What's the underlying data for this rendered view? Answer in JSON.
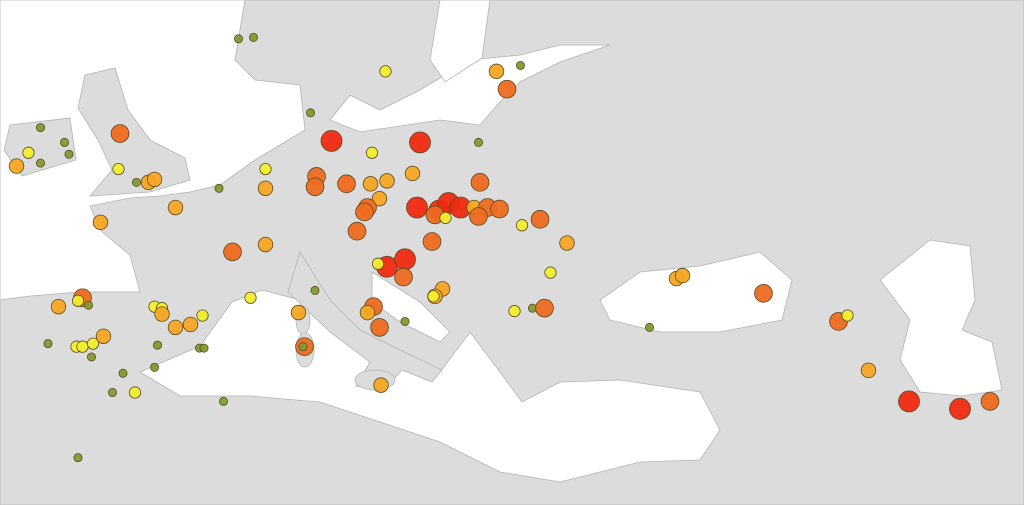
{
  "map": {
    "level_colors": [
      "#7f9a2e",
      "#f2ee2c",
      "#f5a623",
      "#ee6a1f",
      "#f02a10"
    ],
    "points": [
      {
        "lon": 5.8,
        "lat": 60.9,
        "level": 1
      },
      {
        "lon": 6.8,
        "lat": 61.0,
        "level": 1
      },
      {
        "lon": 15.6,
        "lat": 58.7,
        "level": 2
      },
      {
        "lon": 23.0,
        "lat": 58.7,
        "level": 3
      },
      {
        "lon": 23.7,
        "lat": 57.5,
        "level": 4
      },
      {
        "lon": 24.6,
        "lat": 59.1,
        "level": 1
      },
      {
        "lon": -7.4,
        "lat": 54.9,
        "level": 1
      },
      {
        "lon": -8.2,
        "lat": 53.2,
        "level": 2
      },
      {
        "lon": -9.0,
        "lat": 52.3,
        "level": 3
      },
      {
        "lon": -5.8,
        "lat": 53.9,
        "level": 1
      },
      {
        "lon": -5.5,
        "lat": 53.1,
        "level": 1
      },
      {
        "lon": -7.4,
        "lat": 52.5,
        "level": 1
      },
      {
        "lon": -2.1,
        "lat": 54.5,
        "level": 4
      },
      {
        "lon": -2.2,
        "lat": 52.1,
        "level": 2
      },
      {
        "lon": -0.2,
        "lat": 51.2,
        "level": 3
      },
      {
        "lon": 0.2,
        "lat": 51.4,
        "level": 3
      },
      {
        "lon": -1.0,
        "lat": 51.2,
        "level": 1
      },
      {
        "lon": -3.4,
        "lat": 48.5,
        "level": 3
      },
      {
        "lon": 1.6,
        "lat": 49.5,
        "level": 3
      },
      {
        "lon": 4.5,
        "lat": 50.8,
        "level": 1
      },
      {
        "lon": 7.6,
        "lat": 52.1,
        "level": 2
      },
      {
        "lon": 7.6,
        "lat": 50.8,
        "level": 3
      },
      {
        "lon": 10.6,
        "lat": 55.9,
        "level": 1
      },
      {
        "lon": 12.0,
        "lat": 54.0,
        "level": 5
      },
      {
        "lon": 14.7,
        "lat": 53.2,
        "level": 2
      },
      {
        "lon": 17.9,
        "lat": 53.9,
        "level": 5
      },
      {
        "lon": 21.8,
        "lat": 53.9,
        "level": 1
      },
      {
        "lon": 11.0,
        "lat": 51.6,
        "level": 4
      },
      {
        "lon": 10.9,
        "lat": 50.9,
        "level": 4
      },
      {
        "lon": 13.0,
        "lat": 51.1,
        "level": 4
      },
      {
        "lon": 14.6,
        "lat": 51.1,
        "level": 3
      },
      {
        "lon": 15.7,
        "lat": 51.3,
        "level": 3
      },
      {
        "lon": 17.4,
        "lat": 51.8,
        "level": 3
      },
      {
        "lon": 15.2,
        "lat": 50.1,
        "level": 3
      },
      {
        "lon": 14.4,
        "lat": 49.5,
        "level": 4
      },
      {
        "lon": 14.2,
        "lat": 49.2,
        "level": 4
      },
      {
        "lon": 17.7,
        "lat": 49.5,
        "level": 5
      },
      {
        "lon": 19.2,
        "lat": 49.3,
        "level": 5
      },
      {
        "lon": 19.8,
        "lat": 49.8,
        "level": 5
      },
      {
        "lon": 20.6,
        "lat": 49.5,
        "level": 5
      },
      {
        "lon": 18.9,
        "lat": 49.0,
        "level": 4
      },
      {
        "lon": 19.6,
        "lat": 48.8,
        "level": 2
      },
      {
        "lon": 21.5,
        "lat": 49.5,
        "level": 3
      },
      {
        "lon": 22.4,
        "lat": 49.5,
        "level": 4
      },
      {
        "lon": 23.2,
        "lat": 49.4,
        "level": 4
      },
      {
        "lon": 21.9,
        "lat": 51.2,
        "level": 4
      },
      {
        "lon": 21.8,
        "lat": 48.9,
        "level": 4
      },
      {
        "lon": 25.9,
        "lat": 48.7,
        "level": 4
      },
      {
        "lon": 24.7,
        "lat": 48.3,
        "level": 2
      },
      {
        "lon": 27.7,
        "lat": 47.1,
        "level": 3
      },
      {
        "lon": 26.6,
        "lat": 45.1,
        "level": 2
      },
      {
        "lon": 13.7,
        "lat": 47.9,
        "level": 4
      },
      {
        "lon": 18.7,
        "lat": 47.2,
        "level": 4
      },
      {
        "lon": 5.4,
        "lat": 46.5,
        "level": 4
      },
      {
        "lon": 7.6,
        "lat": 47.0,
        "level": 3
      },
      {
        "lon": 6.6,
        "lat": 43.4,
        "level": 2
      },
      {
        "lon": 15.7,
        "lat": 45.5,
        "level": 5
      },
      {
        "lon": 16.9,
        "lat": 46.0,
        "level": 5
      },
      {
        "lon": 16.8,
        "lat": 44.8,
        "level": 4
      },
      {
        "lon": 15.1,
        "lat": 45.7,
        "level": 2
      },
      {
        "lon": 19.4,
        "lat": 44.0,
        "level": 3
      },
      {
        "lon": 18.9,
        "lat": 43.5,
        "level": 3
      },
      {
        "lon": 18.8,
        "lat": 43.5,
        "level": 2
      },
      {
        "lon": 14.8,
        "lat": 42.8,
        "level": 4
      },
      {
        "lon": 14.4,
        "lat": 42.4,
        "level": 3
      },
      {
        "lon": 15.2,
        "lat": 41.4,
        "level": 4
      },
      {
        "lon": 10.9,
        "lat": 43.9,
        "level": 1
      },
      {
        "lon": 9.8,
        "lat": 42.4,
        "level": 3
      },
      {
        "lon": 10.2,
        "lat": 40.1,
        "level": 4
      },
      {
        "lon": 10.1,
        "lat": 40.1,
        "level": 1
      },
      {
        "lon": 16.9,
        "lat": 41.8,
        "level": 1
      },
      {
        "lon": 15.3,
        "lat": 37.5,
        "level": 3
      },
      {
        "lon": 24.2,
        "lat": 42.5,
        "level": 2
      },
      {
        "lon": 25.4,
        "lat": 42.7,
        "level": 1
      },
      {
        "lon": 26.2,
        "lat": 42.7,
        "level": 4
      },
      {
        "lon": 33.2,
        "lat": 41.4,
        "level": 1
      },
      {
        "lon": 35.0,
        "lat": 44.7,
        "level": 3
      },
      {
        "lon": 35.4,
        "lat": 44.9,
        "level": 3
      },
      {
        "lon": 40.8,
        "lat": 43.7,
        "level": 4
      },
      {
        "lon": 45.8,
        "lat": 41.8,
        "level": 4
      },
      {
        "lon": 46.4,
        "lat": 42.2,
        "level": 2
      },
      {
        "lon": 47.8,
        "lat": 38.5,
        "level": 3
      },
      {
        "lon": 50.5,
        "lat": 36.4,
        "level": 5
      },
      {
        "lon": 53.9,
        "lat": 35.9,
        "level": 5
      },
      {
        "lon": 55.9,
        "lat": 36.4,
        "level": 4
      },
      {
        "lon": -6.2,
        "lat": 42.8,
        "level": 3
      },
      {
        "lon": -4.6,
        "lat": 43.4,
        "level": 4
      },
      {
        "lon": -4.9,
        "lat": 43.2,
        "level": 2
      },
      {
        "lon": -4.2,
        "lat": 42.9,
        "level": 1
      },
      {
        "lon": -6.9,
        "lat": 40.3,
        "level": 1
      },
      {
        "lon": -5.0,
        "lat": 40.1,
        "level": 2
      },
      {
        "lon": -4.6,
        "lat": 40.1,
        "level": 2
      },
      {
        "lon": -3.9,
        "lat": 40.3,
        "level": 2
      },
      {
        "lon": -4.0,
        "lat": 39.4,
        "level": 1
      },
      {
        "lon": -3.2,
        "lat": 40.8,
        "level": 3
      },
      {
        "lon": 0.2,
        "lat": 42.8,
        "level": 2
      },
      {
        "lon": 0.7,
        "lat": 42.7,
        "level": 2
      },
      {
        "lon": 0.7,
        "lat": 42.3,
        "level": 3
      },
      {
        "lon": 1.6,
        "lat": 41.4,
        "level": 3
      },
      {
        "lon": 2.6,
        "lat": 41.6,
        "level": 3
      },
      {
        "lon": 3.4,
        "lat": 42.2,
        "level": 2
      },
      {
        "lon": 3.2,
        "lat": 40.0,
        "level": 1
      },
      {
        "lon": 3.5,
        "lat": 40.0,
        "level": 1
      },
      {
        "lon": 0.4,
        "lat": 40.2,
        "level": 1
      },
      {
        "lon": 0.2,
        "lat": 38.7,
        "level": 1
      },
      {
        "lon": -1.9,
        "lat": 38.3,
        "level": 1
      },
      {
        "lon": -2.6,
        "lat": 37.0,
        "level": 1
      },
      {
        "lon": -1.1,
        "lat": 37.0,
        "level": 2
      },
      {
        "lon": 4.8,
        "lat": 36.4,
        "level": 1
      },
      {
        "lon": -4.9,
        "lat": 32.6,
        "level": 1
      }
    ]
  }
}
